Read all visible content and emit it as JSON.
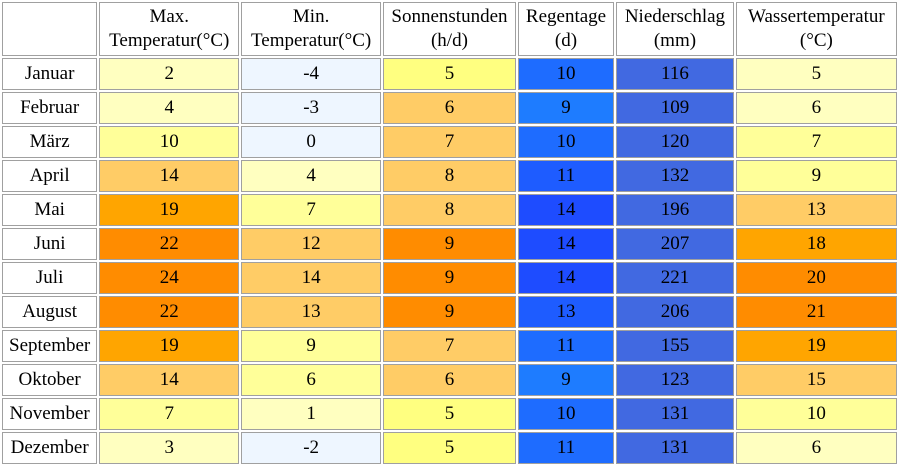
{
  "chart_data": {
    "type": "table",
    "columns": [
      {
        "key": "max_temp",
        "line1": "Max.",
        "line2": "Temperatur(°C)"
      },
      {
        "key": "min_temp",
        "line1": "Min.",
        "line2": "Temperatur(°C)"
      },
      {
        "key": "sun",
        "line1": "Sonnenstunden",
        "line2": "(h/d)"
      },
      {
        "key": "rain_days",
        "line1": "Regentage",
        "line2": "(d)"
      },
      {
        "key": "precip",
        "line1": "Niederschlag",
        "line2": "(mm)"
      },
      {
        "key": "water_temp",
        "line1": "Wassertemperatur",
        "line2": "(°C)"
      }
    ],
    "rows": [
      {
        "month": "Januar",
        "values": [
          "2",
          "-4",
          "5",
          "10",
          "116",
          "5"
        ]
      },
      {
        "month": "Februar",
        "values": [
          "4",
          "-3",
          "6",
          "9",
          "109",
          "6"
        ]
      },
      {
        "month": "März",
        "values": [
          "10",
          "0",
          "7",
          "10",
          "120",
          "7"
        ]
      },
      {
        "month": "April",
        "values": [
          "14",
          "4",
          "8",
          "11",
          "132",
          "9"
        ]
      },
      {
        "month": "Mai",
        "values": [
          "19",
          "7",
          "8",
          "14",
          "196",
          "13"
        ]
      },
      {
        "month": "Juni",
        "values": [
          "22",
          "12",
          "9",
          "14",
          "207",
          "18"
        ]
      },
      {
        "month": "Juli",
        "values": [
          "24",
          "14",
          "9",
          "14",
          "221",
          "20"
        ]
      },
      {
        "month": "August",
        "values": [
          "22",
          "13",
          "9",
          "13",
          "206",
          "21"
        ]
      },
      {
        "month": "September",
        "values": [
          "19",
          "9",
          "7",
          "11",
          "155",
          "19"
        ]
      },
      {
        "month": "Oktober",
        "values": [
          "14",
          "6",
          "6",
          "9",
          "123",
          "15"
        ]
      },
      {
        "month": "November",
        "values": [
          "7",
          "1",
          "5",
          "10",
          "131",
          "10"
        ]
      },
      {
        "month": "Dezember",
        "values": [
          "3",
          "-2",
          "5",
          "11",
          "131",
          "6"
        ]
      }
    ],
    "cell_colors": [
      [
        "#ffffc0",
        "#eef6ff",
        "#ffff80",
        "#1e6cff",
        "#4169e1",
        "#ffffc0"
      ],
      [
        "#ffffc0",
        "#eef6ff",
        "#ffcc66",
        "#1e7cff",
        "#4169e1",
        "#ffffc0"
      ],
      [
        "#ffff99",
        "#eef6ff",
        "#ffcc66",
        "#1e6cff",
        "#4169e1",
        "#ffff99"
      ],
      [
        "#ffcc66",
        "#ffffc0",
        "#ffcc66",
        "#1e5cff",
        "#4169e1",
        "#ffff99"
      ],
      [
        "#ffa500",
        "#ffff99",
        "#ffcc66",
        "#1e4cff",
        "#4169e1",
        "#ffcc66"
      ],
      [
        "#ff8c00",
        "#ffcc66",
        "#ff8c00",
        "#1e4cff",
        "#4169e1",
        "#ffa500"
      ],
      [
        "#ff8c00",
        "#ffcc66",
        "#ff8c00",
        "#1e4cff",
        "#4169e1",
        "#ff8c00"
      ],
      [
        "#ff8c00",
        "#ffcc66",
        "#ff8c00",
        "#1e5cff",
        "#4169e1",
        "#ff8c00"
      ],
      [
        "#ffa500",
        "#ffff99",
        "#ffcc66",
        "#1e6cff",
        "#4169e1",
        "#ffa500"
      ],
      [
        "#ffcc66",
        "#ffff99",
        "#ffcc66",
        "#1e7cff",
        "#4169e1",
        "#ffcc66"
      ],
      [
        "#ffff99",
        "#ffffc0",
        "#ffff80",
        "#1e6cff",
        "#4169e1",
        "#ffff99"
      ],
      [
        "#ffffc0",
        "#eef6ff",
        "#ffff80",
        "#1e6cff",
        "#4169e1",
        "#ffffc0"
      ]
    ]
  }
}
